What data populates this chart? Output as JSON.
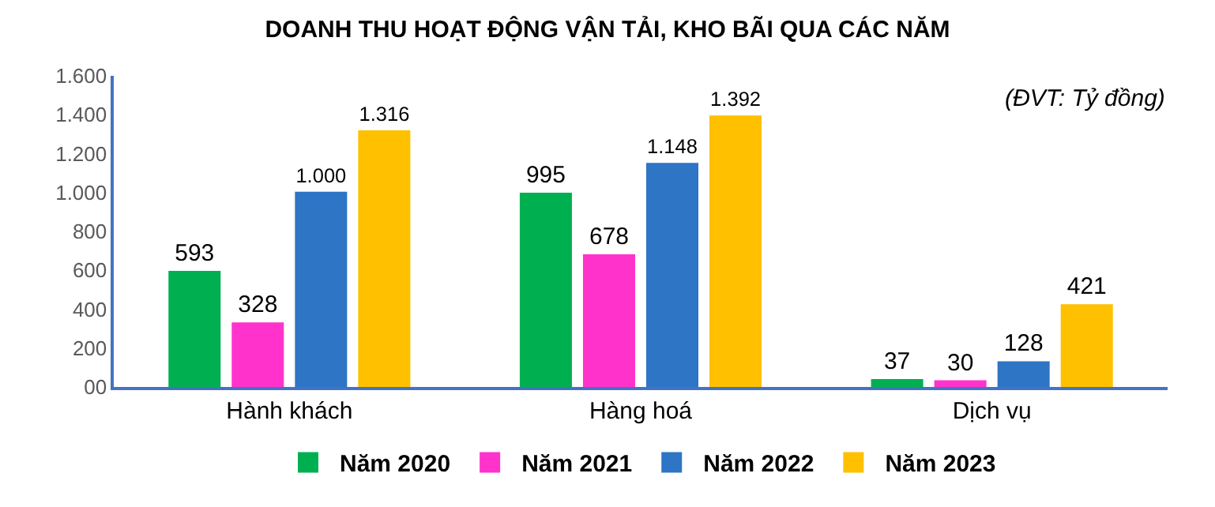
{
  "chart_data": {
    "type": "bar",
    "title": "DOANH THU HOẠT ĐỘNG VẬN TẢI, KHO BÃI QUA CÁC NĂM",
    "annotations": [
      "(ĐVT: Tỷ đồng)"
    ],
    "categories": [
      "Hành khách",
      "Hàng hoá",
      "Dịch vụ"
    ],
    "series": [
      {
        "name": "Năm 2020",
        "color": "#00b050",
        "values": [
          593,
          995,
          37
        ],
        "value_labels": [
          "593",
          "995",
          "37"
        ]
      },
      {
        "name": "Năm 2021",
        "color": "#ff33cc",
        "values": [
          328,
          678,
          30
        ],
        "value_labels": [
          "328",
          "678",
          "30"
        ]
      },
      {
        "name": "Năm 2022",
        "color": "#2e75c6",
        "values": [
          1000,
          1148,
          128
        ],
        "value_labels": [
          "1.000",
          "1.148",
          "128"
        ]
      },
      {
        "name": "Năm 2023",
        "color": "#ffc000",
        "values": [
          1316,
          1392,
          421
        ],
        "value_labels": [
          "1.316",
          "1.392",
          "421"
        ]
      }
    ],
    "ylim": [
      0,
      1600
    ],
    "yticks": [
      {
        "value": 0,
        "label": "00"
      },
      200,
      400,
      600,
      800,
      {
        "value": 1000,
        "label": "1.000"
      },
      {
        "value": 1200,
        "label": "1.200"
      },
      {
        "value": 1400,
        "label": "1.400"
      },
      {
        "value": 1600,
        "label": "1.600"
      }
    ],
    "legend": "bottom"
  }
}
